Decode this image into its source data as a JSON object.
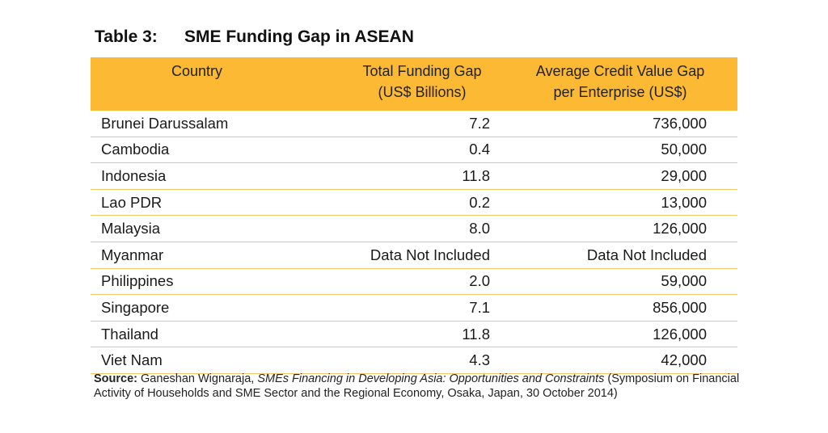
{
  "title": {
    "label": "Table 3:",
    "text": "SME Funding Gap in ASEAN"
  },
  "table": {
    "headers": {
      "country": "Country",
      "gap_line1": "Total Funding Gap",
      "gap_line2": "(US$ Billions)",
      "credit_line1": "Average Credit Value Gap",
      "credit_line2": "per Enterprise (US$)"
    },
    "rows": [
      {
        "country": "Brunei Darussalam",
        "gap": "7.2",
        "credit": "736,000"
      },
      {
        "country": "Cambodia",
        "gap": "0.4",
        "credit": "50,000"
      },
      {
        "country": "Indonesia",
        "gap": "11.8",
        "credit": "29,000"
      },
      {
        "country": "Lao PDR",
        "gap": "0.2",
        "credit": "13,000"
      },
      {
        "country": "Malaysia",
        "gap": "8.0",
        "credit": "126,000"
      },
      {
        "country": "Myanmar",
        "gap": "Data Not Included",
        "credit": "Data Not Included"
      },
      {
        "country": "Philippines",
        "gap": "2.0",
        "credit": "59,000"
      },
      {
        "country": "Singapore",
        "gap": "7.1",
        "credit": "856,000"
      },
      {
        "country": "Thailand",
        "gap": "11.8",
        "credit": "126,000"
      },
      {
        "country": "Viet Nam",
        "gap": "4.3",
        "credit": "42,000"
      }
    ]
  },
  "source": {
    "label": "Source:",
    "author": "Ganeshan Wignaraja,",
    "work": "SMEs Financing in Developing Asia: Opportunities and Constraints",
    "details": "(Symposium on Financial Activity of Households and SME Sector and the Regional Economy, Osaka, Japan, 30 October 2014)"
  },
  "colors": {
    "header_background": "#fcb934",
    "row_divider": "#f5c46a"
  }
}
